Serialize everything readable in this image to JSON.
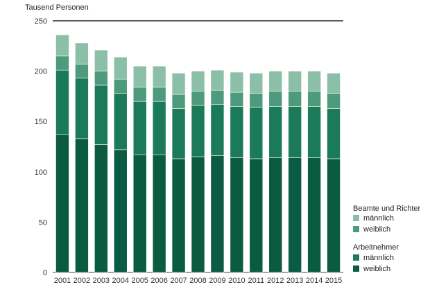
{
  "chart_data": {
    "type": "bar",
    "stacked": true,
    "ylabel": "Tausend Personen",
    "ylim": [
      0,
      250
    ],
    "yticks": [
      0,
      50,
      100,
      150,
      200,
      250
    ],
    "grid": false,
    "legend_position": "right",
    "categories": [
      "2001",
      "2002",
      "2003",
      "2004",
      "2005",
      "2006",
      "2007",
      "2008",
      "2009",
      "2010",
      "2011",
      "2012",
      "2013",
      "2014",
      "2015"
    ],
    "groups": [
      {
        "title": "Arbeitnehmer",
        "series": [
          {
            "name": "weiblich",
            "color": "#0b5a42",
            "values": [
              137,
              133,
              127,
              122,
              117,
              117,
              113,
              115,
              116,
              114,
              113,
              114,
              114,
              114,
              113
            ]
          },
          {
            "name": "männlich",
            "color": "#1a7a5a",
            "values": [
              64,
              60,
              59,
              56,
              53,
              53,
              50,
              51,
              51,
              51,
              51,
              51,
              51,
              51,
              50
            ]
          }
        ]
      },
      {
        "title": "Beamte und Richter",
        "series": [
          {
            "name": "weiblich",
            "color": "#4e9a7c",
            "values": [
              14,
              14,
              14,
              14,
              14,
              14,
              14,
              14,
              14,
              14,
              14,
              15,
              15,
              15,
              15
            ]
          },
          {
            "name": "männlich",
            "color": "#8cbfa8",
            "values": [
              21,
              21,
              21,
              22,
              21,
              21,
              21,
              20,
              20,
              20,
              20,
              20,
              20,
              20,
              20
            ]
          }
        ]
      }
    ]
  }
}
